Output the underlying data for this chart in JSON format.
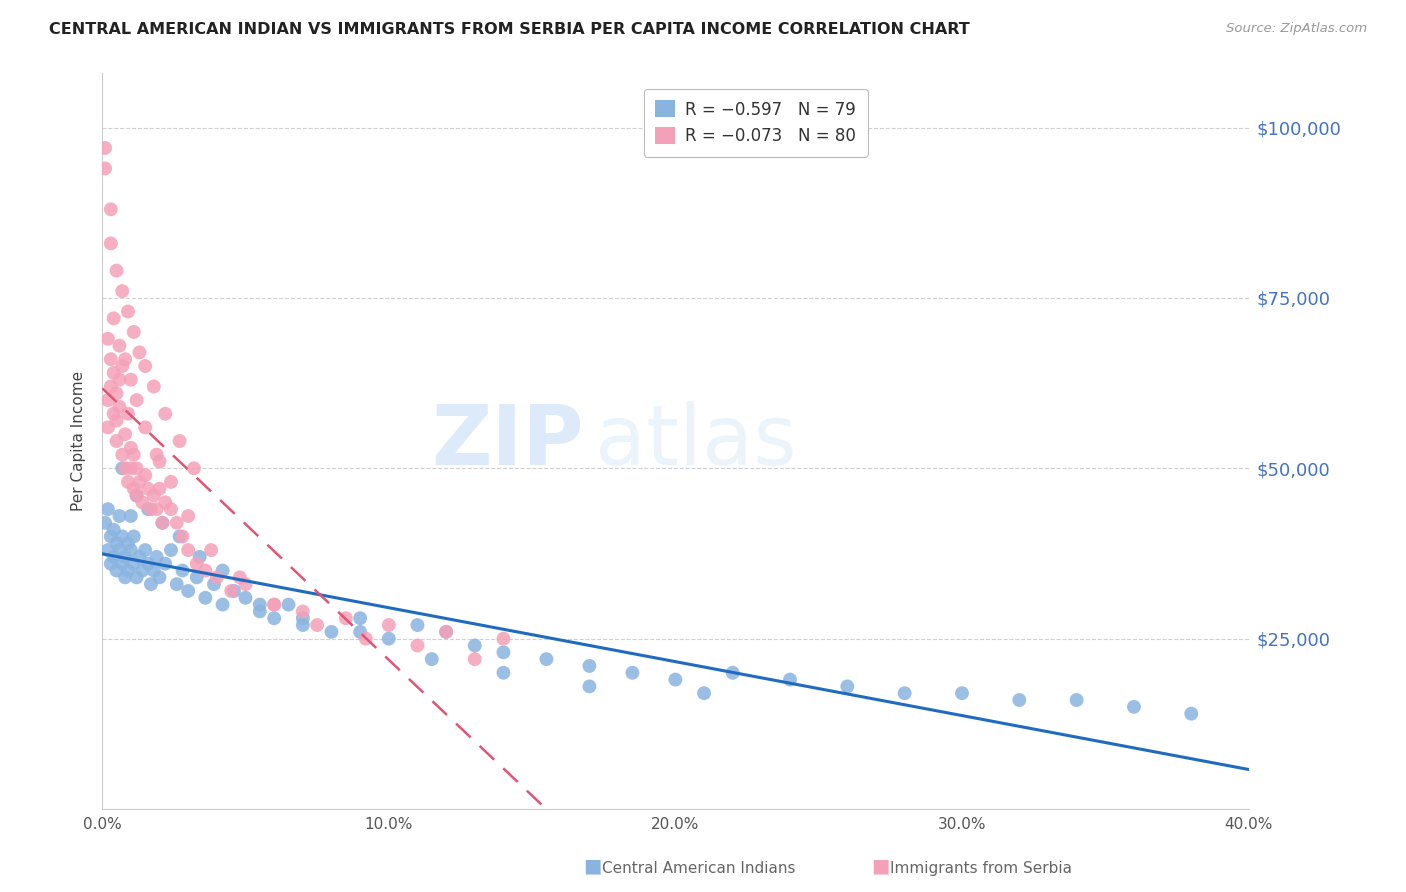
{
  "title": "CENTRAL AMERICAN INDIAN VS IMMIGRANTS FROM SERBIA PER CAPITA INCOME CORRELATION CHART",
  "source": "Source: ZipAtlas.com",
  "ylabel": "Per Capita Income",
  "xmin": 0.0,
  "xmax": 0.4,
  "ymin": 0,
  "ymax": 108000,
  "blue_color": "#8ab4e0",
  "pink_color": "#f4a0b8",
  "blue_line_color": "#1f6bbf",
  "pink_line_color": "#e05575",
  "watermark_zip": "ZIP",
  "watermark_atlas": "atlas",
  "legend_R_blue": "-0.597",
  "legend_N_blue": "79",
  "legend_R_pink": "-0.073",
  "legend_N_pink": "80",
  "blue_scatter_x": [
    0.001,
    0.002,
    0.002,
    0.003,
    0.003,
    0.004,
    0.004,
    0.005,
    0.005,
    0.006,
    0.006,
    0.007,
    0.007,
    0.008,
    0.008,
    0.009,
    0.009,
    0.01,
    0.01,
    0.011,
    0.011,
    0.012,
    0.013,
    0.014,
    0.015,
    0.016,
    0.017,
    0.018,
    0.019,
    0.02,
    0.022,
    0.024,
    0.026,
    0.028,
    0.03,
    0.033,
    0.036,
    0.039,
    0.042,
    0.046,
    0.05,
    0.055,
    0.06,
    0.065,
    0.07,
    0.08,
    0.09,
    0.1,
    0.11,
    0.12,
    0.13,
    0.14,
    0.155,
    0.17,
    0.185,
    0.2,
    0.22,
    0.24,
    0.26,
    0.28,
    0.3,
    0.32,
    0.34,
    0.36,
    0.38,
    0.007,
    0.012,
    0.016,
    0.021,
    0.027,
    0.034,
    0.042,
    0.055,
    0.07,
    0.09,
    0.115,
    0.14,
    0.17,
    0.21
  ],
  "blue_scatter_y": [
    42000,
    38000,
    44000,
    40000,
    36000,
    37000,
    41000,
    35000,
    39000,
    43000,
    38000,
    36000,
    40000,
    34000,
    37000,
    39000,
    35000,
    43000,
    38000,
    36000,
    40000,
    34000,
    37000,
    35000,
    38000,
    36000,
    33000,
    35000,
    37000,
    34000,
    36000,
    38000,
    33000,
    35000,
    32000,
    34000,
    31000,
    33000,
    30000,
    32000,
    31000,
    29000,
    28000,
    30000,
    27000,
    26000,
    28000,
    25000,
    27000,
    26000,
    24000,
    23000,
    22000,
    21000,
    20000,
    19000,
    20000,
    19000,
    18000,
    17000,
    17000,
    16000,
    16000,
    15000,
    14000,
    50000,
    46000,
    44000,
    42000,
    40000,
    37000,
    35000,
    30000,
    28000,
    26000,
    22000,
    20000,
    18000,
    17000
  ],
  "pink_scatter_x": [
    0.001,
    0.001,
    0.002,
    0.002,
    0.003,
    0.003,
    0.004,
    0.004,
    0.005,
    0.005,
    0.005,
    0.006,
    0.006,
    0.007,
    0.007,
    0.008,
    0.008,
    0.009,
    0.009,
    0.01,
    0.01,
    0.011,
    0.011,
    0.012,
    0.012,
    0.013,
    0.014,
    0.015,
    0.016,
    0.017,
    0.018,
    0.019,
    0.02,
    0.021,
    0.022,
    0.024,
    0.026,
    0.028,
    0.03,
    0.033,
    0.036,
    0.04,
    0.045,
    0.05,
    0.06,
    0.07,
    0.085,
    0.1,
    0.12,
    0.14,
    0.003,
    0.005,
    0.007,
    0.009,
    0.011,
    0.013,
    0.015,
    0.018,
    0.022,
    0.027,
    0.032,
    0.002,
    0.004,
    0.006,
    0.008,
    0.01,
    0.012,
    0.015,
    0.019,
    0.024,
    0.03,
    0.038,
    0.048,
    0.06,
    0.075,
    0.092,
    0.11,
    0.13,
    0.003,
    0.02
  ],
  "pink_scatter_y": [
    94000,
    97000,
    56000,
    60000,
    62000,
    66000,
    58000,
    64000,
    57000,
    61000,
    54000,
    63000,
    59000,
    65000,
    52000,
    55000,
    50000,
    58000,
    48000,
    53000,
    50000,
    47000,
    52000,
    46000,
    50000,
    48000,
    45000,
    49000,
    47000,
    44000,
    46000,
    44000,
    47000,
    42000,
    45000,
    44000,
    42000,
    40000,
    38000,
    36000,
    35000,
    34000,
    32000,
    33000,
    30000,
    29000,
    28000,
    27000,
    26000,
    25000,
    83000,
    79000,
    76000,
    73000,
    70000,
    67000,
    65000,
    62000,
    58000,
    54000,
    50000,
    69000,
    72000,
    68000,
    66000,
    63000,
    60000,
    56000,
    52000,
    48000,
    43000,
    38000,
    34000,
    30000,
    27000,
    25000,
    24000,
    22000,
    88000,
    51000
  ]
}
